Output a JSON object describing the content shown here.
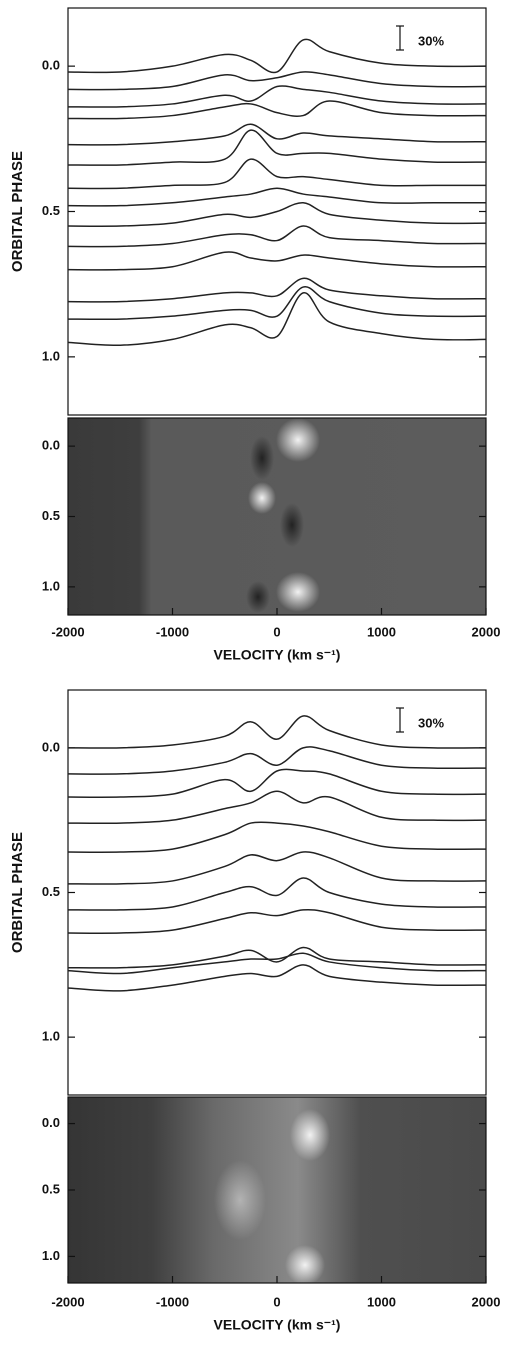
{
  "chart_data": [
    {
      "type": "line",
      "ylabel": "ORBITAL PHASE",
      "scale_label": "30%",
      "xlim": [
        -2000,
        2000
      ],
      "ylim": [
        -0.2,
        1.2
      ],
      "y_inverted": true,
      "yticks": [
        0.0,
        0.5,
        1.0
      ],
      "x": [
        -2000,
        -1500,
        -1000,
        -500,
        -250,
        0,
        250,
        500,
        1000,
        1500,
        2000
      ],
      "series": [
        {
          "color": "#222222",
          "values": [
            0.02,
            0.02,
            0.0,
            -0.04,
            -0.02,
            0.02,
            -0.09,
            -0.05,
            -0.01,
            0.0,
            0.0
          ]
        },
        {
          "color": "#222222",
          "values": [
            0.08,
            0.08,
            0.07,
            0.03,
            0.05,
            0.04,
            0.02,
            0.03,
            0.06,
            0.07,
            0.07
          ]
        },
        {
          "color": "#222222",
          "values": [
            0.14,
            0.14,
            0.13,
            0.1,
            0.12,
            0.07,
            0.08,
            0.09,
            0.12,
            0.13,
            0.13
          ]
        },
        {
          "color": "#222222",
          "values": [
            0.18,
            0.18,
            0.17,
            0.14,
            0.13,
            0.16,
            0.17,
            0.12,
            0.16,
            0.17,
            0.17
          ]
        },
        {
          "color": "#222222",
          "values": [
            0.27,
            0.27,
            0.26,
            0.24,
            0.2,
            0.25,
            0.23,
            0.24,
            0.25,
            0.26,
            0.26
          ]
        },
        {
          "color": "#222222",
          "values": [
            0.34,
            0.34,
            0.33,
            0.32,
            0.22,
            0.3,
            0.3,
            0.3,
            0.32,
            0.33,
            0.33
          ]
        },
        {
          "color": "#222222",
          "values": [
            0.42,
            0.42,
            0.41,
            0.4,
            0.32,
            0.38,
            0.38,
            0.39,
            0.41,
            0.41,
            0.41
          ]
        },
        {
          "color": "#222222",
          "values": [
            0.48,
            0.48,
            0.47,
            0.45,
            0.44,
            0.42,
            0.44,
            0.45,
            0.47,
            0.47,
            0.47
          ]
        },
        {
          "color": "#222222",
          "values": [
            0.55,
            0.55,
            0.54,
            0.51,
            0.52,
            0.5,
            0.47,
            0.51,
            0.53,
            0.54,
            0.54
          ]
        },
        {
          "color": "#222222",
          "values": [
            0.62,
            0.62,
            0.61,
            0.58,
            0.58,
            0.6,
            0.55,
            0.59,
            0.6,
            0.61,
            0.61
          ]
        },
        {
          "color": "#222222",
          "values": [
            0.7,
            0.7,
            0.69,
            0.64,
            0.66,
            0.67,
            0.65,
            0.66,
            0.68,
            0.69,
            0.69
          ]
        },
        {
          "color": "#222222",
          "values": [
            0.81,
            0.81,
            0.8,
            0.78,
            0.78,
            0.79,
            0.73,
            0.77,
            0.79,
            0.8,
            0.8
          ]
        },
        {
          "color": "#222222",
          "values": [
            0.87,
            0.87,
            0.86,
            0.84,
            0.84,
            0.86,
            0.76,
            0.81,
            0.85,
            0.86,
            0.86
          ]
        },
        {
          "color": "#222222",
          "values": [
            0.95,
            0.96,
            0.94,
            0.89,
            0.9,
            0.93,
            0.78,
            0.88,
            0.92,
            0.94,
            0.94
          ]
        }
      ]
    },
    {
      "type": "image",
      "xlabel": "VELOCITY (km s⁻¹)",
      "xlim": [
        -2000,
        2000
      ],
      "xticks": [
        -2000,
        -1000,
        0,
        1000,
        2000
      ],
      "ylim": [
        -0.2,
        1.2
      ],
      "y_inverted": true,
      "yticks": [
        0.0,
        0.5,
        1.0
      ]
    },
    {
      "type": "line",
      "ylabel": "ORBITAL PHASE",
      "scale_label": "30%",
      "xlim": [
        -2000,
        2000
      ],
      "ylim": [
        -0.2,
        1.2
      ],
      "y_inverted": true,
      "yticks": [
        0.0,
        0.5,
        1.0
      ],
      "x": [
        -2000,
        -1500,
        -1000,
        -500,
        -250,
        0,
        250,
        500,
        1000,
        1500,
        2000
      ],
      "series": [
        {
          "color": "#222222",
          "values": [
            0.0,
            0.0,
            -0.01,
            -0.04,
            -0.09,
            -0.03,
            -0.11,
            -0.06,
            -0.01,
            0.0,
            0.0
          ]
        },
        {
          "color": "#222222",
          "values": [
            0.09,
            0.09,
            0.08,
            0.05,
            0.02,
            0.06,
            0.0,
            0.01,
            0.06,
            0.07,
            0.07
          ]
        },
        {
          "color": "#222222",
          "values": [
            0.17,
            0.17,
            0.16,
            0.11,
            0.15,
            0.08,
            0.08,
            0.09,
            0.15,
            0.16,
            0.16
          ]
        },
        {
          "color": "#222222",
          "values": [
            0.26,
            0.26,
            0.25,
            0.21,
            0.19,
            0.15,
            0.19,
            0.17,
            0.24,
            0.25,
            0.25
          ]
        },
        {
          "color": "#222222",
          "values": [
            0.36,
            0.36,
            0.35,
            0.3,
            0.26,
            0.26,
            0.27,
            0.29,
            0.34,
            0.35,
            0.35
          ]
        },
        {
          "color": "#222222",
          "values": [
            0.47,
            0.47,
            0.46,
            0.41,
            0.37,
            0.39,
            0.36,
            0.38,
            0.45,
            0.46,
            0.46
          ]
        },
        {
          "color": "#222222",
          "values": [
            0.56,
            0.56,
            0.55,
            0.5,
            0.48,
            0.51,
            0.45,
            0.5,
            0.54,
            0.55,
            0.55
          ]
        },
        {
          "color": "#222222",
          "values": [
            0.64,
            0.64,
            0.63,
            0.59,
            0.57,
            0.58,
            0.56,
            0.57,
            0.62,
            0.63,
            0.63
          ]
        },
        {
          "color": "#222222",
          "values": [
            0.76,
            0.76,
            0.75,
            0.72,
            0.7,
            0.74,
            0.69,
            0.73,
            0.74,
            0.75,
            0.75
          ]
        },
        {
          "color": "#222222",
          "values": [
            0.77,
            0.78,
            0.76,
            0.74,
            0.73,
            0.73,
            0.71,
            0.74,
            0.76,
            0.77,
            0.77
          ]
        },
        {
          "color": "#222222",
          "values": [
            0.83,
            0.84,
            0.82,
            0.79,
            0.78,
            0.79,
            0.75,
            0.79,
            0.81,
            0.82,
            0.82
          ]
        }
      ]
    },
    {
      "type": "image",
      "xlabel": "VELOCITY (km s⁻¹)",
      "xlim": [
        -2000,
        2000
      ],
      "xticks": [
        -2000,
        -1000,
        0,
        1000,
        2000
      ],
      "ylim": [
        -0.2,
        1.2
      ],
      "y_inverted": true,
      "yticks": [
        0.0,
        0.5,
        1.0
      ]
    }
  ]
}
